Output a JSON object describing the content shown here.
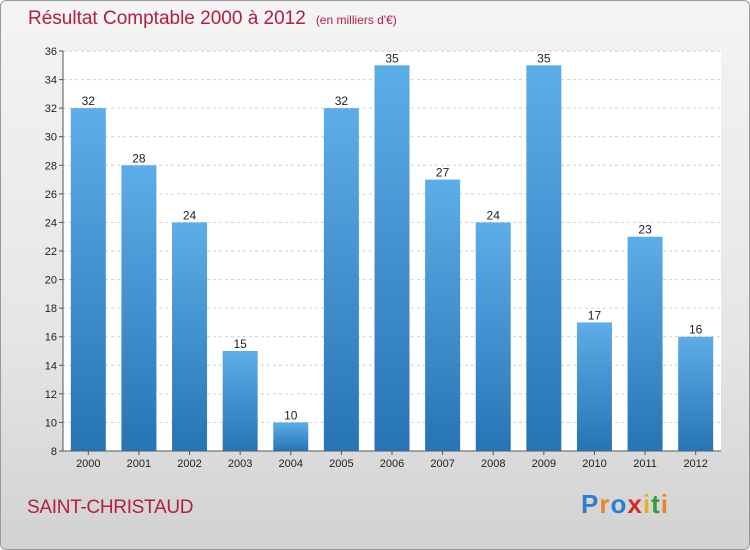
{
  "chart_data": {
    "type": "bar",
    "title": "Résultat Comptable 2000 à 2012",
    "subtitle": "(en milliers d'€)",
    "categories": [
      "2000",
      "2001",
      "2002",
      "2003",
      "2004",
      "2005",
      "2006",
      "2007",
      "2008",
      "2009",
      "2010",
      "2011",
      "2012"
    ],
    "values": [
      32,
      28,
      24,
      15,
      10,
      32,
      35,
      27,
      24,
      35,
      17,
      23,
      16
    ],
    "ylim": [
      8,
      36
    ],
    "yticks": [
      8,
      10,
      12,
      14,
      16,
      18,
      20,
      22,
      24,
      26,
      28,
      30,
      32,
      34,
      36
    ],
    "grid": true,
    "xlabel": "",
    "ylabel": ""
  },
  "commune": "SAINT-CHRISTAUD",
  "brand": {
    "letters": [
      "P",
      "r",
      "o",
      "x",
      "i",
      "t",
      "i"
    ],
    "colors": [
      "#2e7fd0",
      "#e8862a",
      "#2e7fd0",
      "#d42a2a",
      "#e8b020",
      "#2e9e3e",
      "#e8862a"
    ]
  },
  "colors": {
    "bar_top": "#5dade8",
    "bar_bottom": "#2774b4",
    "title": "#b0203f"
  }
}
